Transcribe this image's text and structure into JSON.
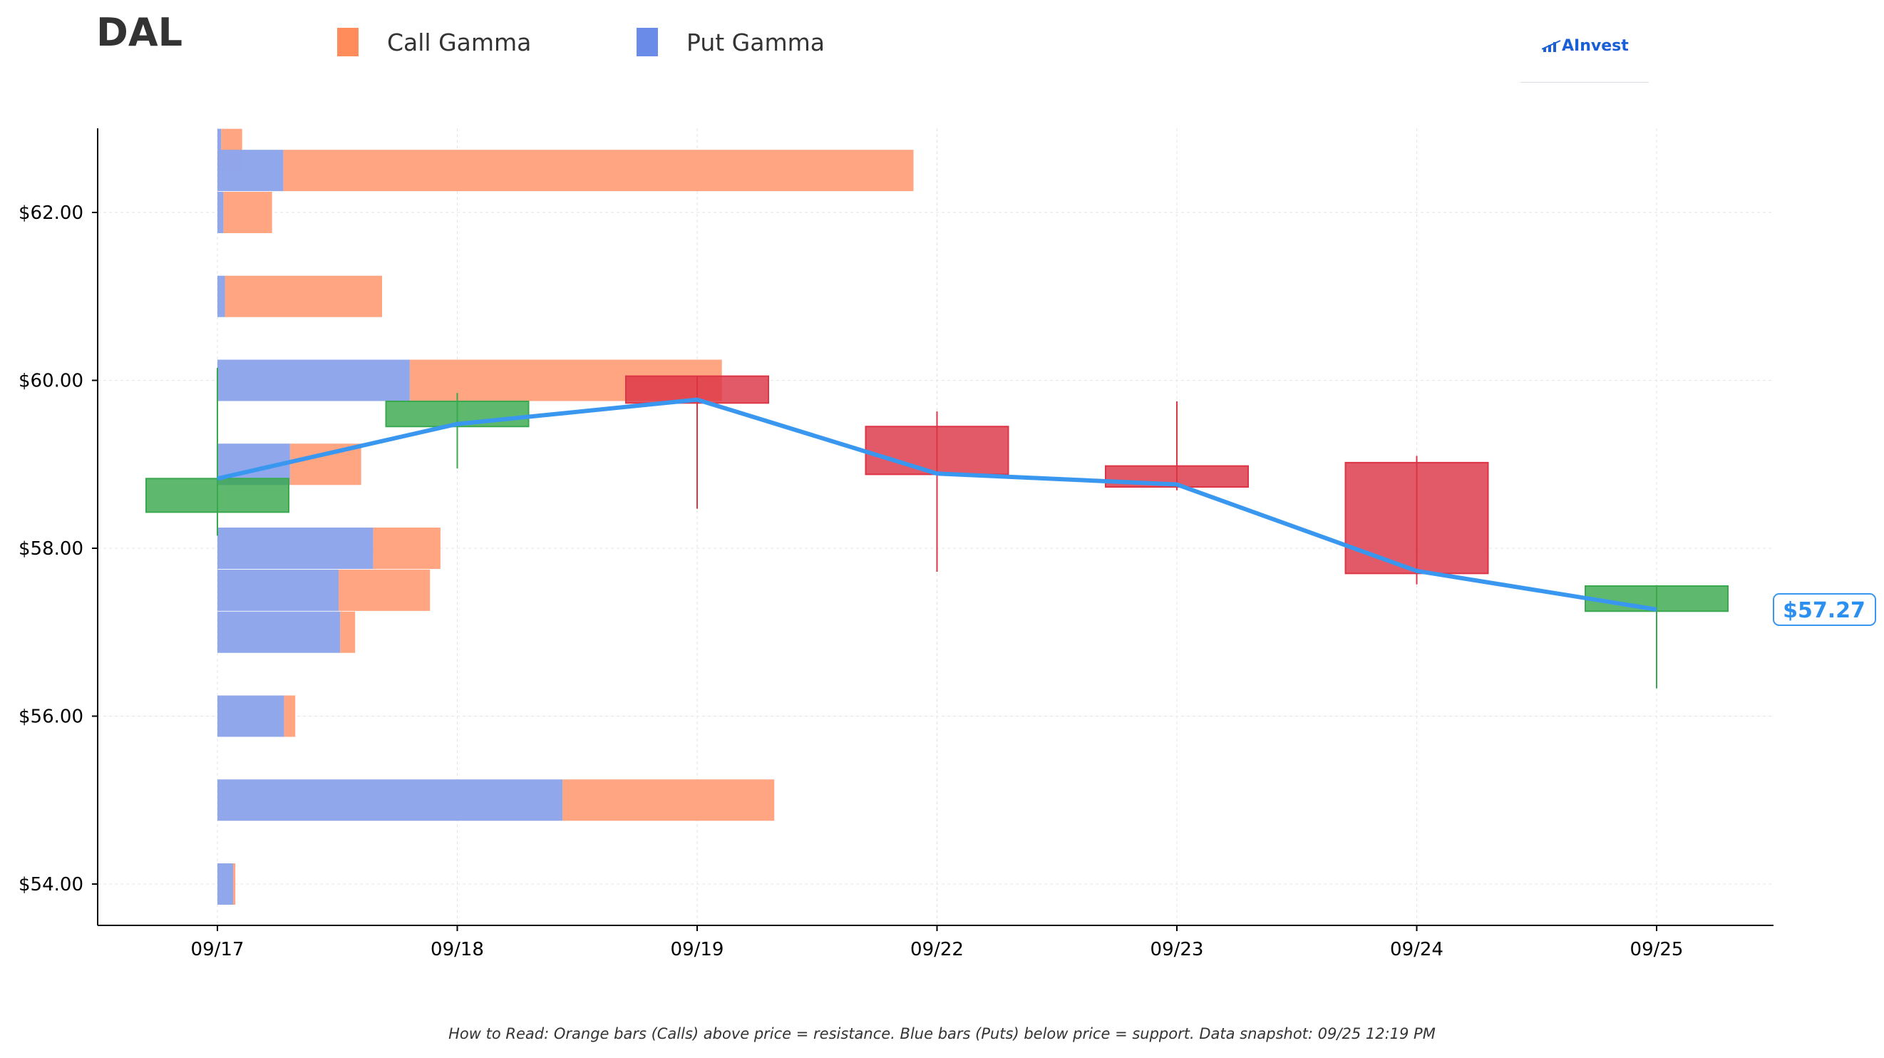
{
  "header": {
    "ticker": "DAL",
    "legend": [
      {
        "label": "Call Gamma",
        "color": "#FF8C5A"
      },
      {
        "label": "Put Gamma",
        "color": "#6B8BE8"
      }
    ],
    "brand": "AInvest"
  },
  "footer": {
    "note": "How to Read: Orange bars (Calls) above price = resistance. Blue bars (Puts) below price = support. Data snapshot: 09/25 12:19 PM"
  },
  "colors": {
    "call": "#FFA07A",
    "put": "#8EA5EC",
    "up": "#3aa84e",
    "down": "#dc3545",
    "price_line": "#3a97f0"
  },
  "chart_data": {
    "type": "candlestick-gamma",
    "title": "DAL",
    "dates": [
      "09/17",
      "09/18",
      "09/19",
      "09/22",
      "09/23",
      "09/24",
      "09/25"
    ],
    "y_ticks": [
      "$54.00",
      "$56.00",
      "$58.00",
      "$60.00",
      "$62.00"
    ],
    "y_tick_values": [
      54,
      56,
      58,
      60,
      62
    ],
    "ylim": [
      53.5,
      63
    ],
    "grid": true,
    "candles": [
      {
        "date": "09/17",
        "open": 58.43,
        "high": 60.15,
        "low": 58.15,
        "close": 58.83
      },
      {
        "date": "09/18",
        "open": 59.45,
        "high": 59.85,
        "low": 58.95,
        "close": 59.75
      },
      {
        "date": "09/19",
        "open": 60.05,
        "high": 60.05,
        "low": 58.47,
        "close": 59.73
      },
      {
        "date": "09/22",
        "open": 59.45,
        "high": 59.63,
        "low": 57.72,
        "close": 58.88
      },
      {
        "date": "09/23",
        "open": 58.98,
        "high": 59.75,
        "low": 58.69,
        "close": 58.73
      },
      {
        "date": "09/24",
        "open": 59.02,
        "high": 59.1,
        "low": 57.57,
        "close": 57.7
      },
      {
        "date": "09/25",
        "open": 57.25,
        "high": 57.56,
        "low": 56.33,
        "close": 57.55
      }
    ],
    "price_line": [
      58.83,
      59.48,
      59.77,
      58.89,
      58.76,
      57.73,
      57.27
    ],
    "current_price": 57.27,
    "current_price_label": "$57.27",
    "gamma_bars": [
      {
        "strike": 62.75,
        "put": 0.05,
        "call": 0.28
      },
      {
        "strike": 62.5,
        "put": 0.88,
        "call": 8.42
      },
      {
        "strike": 62.0,
        "put": 0.08,
        "call": 0.65
      },
      {
        "strike": 61.0,
        "put": 0.1,
        "call": 2.1
      },
      {
        "strike": 60.0,
        "put": 2.57,
        "call": 4.17
      },
      {
        "strike": 59.0,
        "put": 0.97,
        "call": 0.95
      },
      {
        "strike": 58.0,
        "put": 2.08,
        "call": 0.9
      },
      {
        "strike": 57.5,
        "put": 1.62,
        "call": 1.22
      },
      {
        "strike": 57.0,
        "put": 1.64,
        "call": 0.2
      },
      {
        "strike": 56.0,
        "put": 0.89,
        "call": 0.15
      },
      {
        "strike": 55.0,
        "put": 4.61,
        "call": 2.83
      },
      {
        "strike": 54.0,
        "put": 0.21,
        "call": 0.03
      }
    ]
  }
}
